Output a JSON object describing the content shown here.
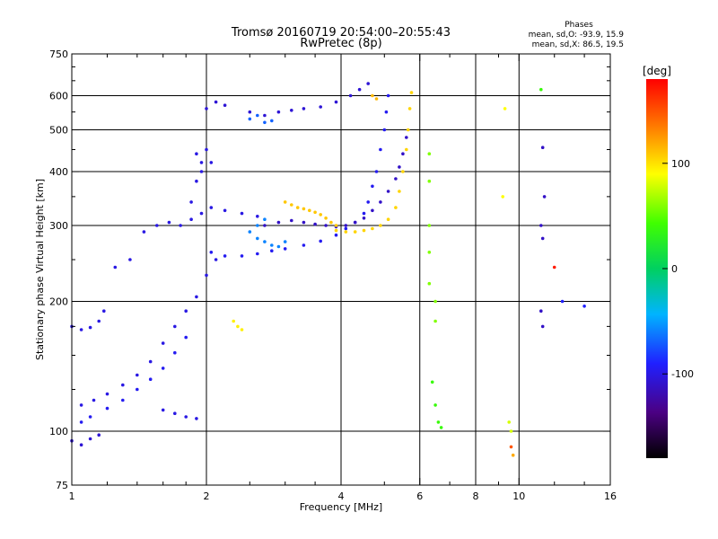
{
  "title": "Tromsø 20160719 20:54:00–20:55:43",
  "subtitle": "RwPretec (8p)",
  "phase_box": {
    "heading": "Phases",
    "line_o": "mean, sd,O: -93.9, 15.9",
    "line_x": "mean, sd,X:  86.5, 19.5"
  },
  "colorbar": {
    "label": "[deg]",
    "min": -180,
    "max": 180,
    "ticks": [
      {
        "value": 100,
        "label": "100"
      },
      {
        "value": 0,
        "label": "0"
      },
      {
        "value": -100,
        "label": "-100"
      }
    ]
  },
  "chart_data": {
    "type": "scatter",
    "xlabel": "Frequency [MHz]",
    "ylabel": "Stationary phase Virtual Height [km]",
    "xscale": "log",
    "yscale": "log",
    "xlim": [
      1,
      16
    ],
    "ylim": [
      75,
      750
    ],
    "xticks": [
      {
        "value": 1,
        "label": "1"
      },
      {
        "value": 2,
        "label": "2"
      },
      {
        "value": 4,
        "label": "4"
      },
      {
        "value": 6,
        "label": "6"
      },
      {
        "value": 8,
        "label": "8"
      },
      {
        "value": 10,
        "label": "10"
      },
      {
        "value": 16,
        "label": "16"
      }
    ],
    "yticks": [
      {
        "value": 75,
        "label": "75"
      },
      {
        "value": 100,
        "label": "100"
      },
      {
        "value": 200,
        "label": "200"
      },
      {
        "value": 300,
        "label": "300"
      },
      {
        "value": 400,
        "label": "400"
      },
      {
        "value": 500,
        "label": "500"
      },
      {
        "value": 600,
        "label": "600"
      },
      {
        "value": 750,
        "label": "750"
      }
    ],
    "v_grid": [
      2,
      4,
      6,
      8,
      10
    ],
    "h_grid": [
      100,
      200,
      300,
      400,
      500,
      600
    ],
    "minor_xticks": [
      1.2,
      1.4,
      1.6,
      1.8,
      2.5,
      3,
      3.5,
      5,
      7,
      9,
      12,
      14
    ],
    "minor_yticks": [
      125,
      150,
      175,
      250,
      350,
      450,
      550,
      650,
      700
    ],
    "grid": true,
    "traces": [
      {
        "name": "",
        "phase": -100,
        "points": [
          [
            1.0,
            175
          ],
          [
            1.05,
            172
          ],
          [
            1.1,
            174
          ],
          [
            1.15,
            180
          ],
          [
            1.18,
            190
          ],
          [
            1.25,
            240
          ],
          [
            1.35,
            250
          ],
          [
            1.45,
            290
          ],
          [
            1.55,
            300
          ],
          [
            1.65,
            305
          ],
          [
            1.75,
            300
          ],
          [
            1.85,
            310
          ],
          [
            1.95,
            320
          ],
          [
            2.05,
            330
          ],
          [
            2.2,
            325
          ],
          [
            2.4,
            320
          ],
          [
            2.6,
            315
          ]
        ]
      },
      {
        "name": "",
        "phase": -100,
        "points": [
          [
            1.05,
            115
          ],
          [
            1.12,
            118
          ],
          [
            1.2,
            122
          ],
          [
            1.3,
            128
          ],
          [
            1.4,
            135
          ],
          [
            1.5,
            145
          ],
          [
            1.6,
            160
          ],
          [
            1.7,
            175
          ],
          [
            1.8,
            190
          ],
          [
            1.9,
            205
          ],
          [
            2.0,
            230
          ],
          [
            2.1,
            250
          ]
        ]
      },
      {
        "name": "",
        "phase": -105,
        "points": [
          [
            1.0,
            95
          ],
          [
            1.05,
            93
          ],
          [
            1.1,
            96
          ],
          [
            1.15,
            98
          ]
        ]
      },
      {
        "name": "",
        "phase": -95,
        "points": [
          [
            1.05,
            105
          ],
          [
            1.1,
            108
          ],
          [
            1.2,
            113
          ],
          [
            1.3,
            118
          ],
          [
            1.4,
            125
          ],
          [
            1.5,
            132
          ],
          [
            1.6,
            140
          ],
          [
            1.7,
            152
          ],
          [
            1.8,
            165
          ]
        ]
      },
      {
        "name": "",
        "phase": -100,
        "points": [
          [
            1.6,
            112
          ],
          [
            1.7,
            110
          ],
          [
            1.8,
            108
          ],
          [
            1.9,
            107
          ]
        ]
      },
      {
        "name": "",
        "phase": -100,
        "points": [
          [
            1.85,
            340
          ],
          [
            1.9,
            380
          ],
          [
            1.95,
            420
          ],
          [
            2.0,
            450
          ],
          [
            2.05,
            420
          ],
          [
            1.9,
            440
          ],
          [
            1.95,
            400
          ]
        ]
      },
      {
        "name": "",
        "phase": -105,
        "points": [
          [
            2.0,
            560
          ],
          [
            2.1,
            580
          ],
          [
            2.2,
            570
          ],
          [
            2.5,
            550
          ],
          [
            2.7,
            540
          ],
          [
            2.9,
            550
          ],
          [
            3.1,
            555
          ],
          [
            3.3,
            560
          ],
          [
            3.6,
            565
          ],
          [
            3.9,
            580
          ],
          [
            4.2,
            600
          ],
          [
            4.4,
            620
          ],
          [
            4.6,
            640
          ]
        ]
      },
      {
        "name": "",
        "phase": -70,
        "points": [
          [
            2.5,
            530
          ],
          [
            2.6,
            540
          ],
          [
            2.7,
            520
          ],
          [
            2.8,
            525
          ]
        ]
      },
      {
        "name": "",
        "phase": -95,
        "points": [
          [
            2.05,
            260
          ],
          [
            2.2,
            255
          ],
          [
            2.4,
            255
          ],
          [
            2.6,
            258
          ],
          [
            2.8,
            262
          ],
          [
            3.0,
            265
          ],
          [
            3.3,
            270
          ],
          [
            3.6,
            276
          ],
          [
            3.9,
            285
          ],
          [
            4.1,
            295
          ],
          [
            4.3,
            305
          ],
          [
            4.5,
            320
          ],
          [
            4.6,
            340
          ],
          [
            4.7,
            370
          ],
          [
            4.8,
            400
          ],
          [
            4.9,
            450
          ],
          [
            5.0,
            500
          ],
          [
            5.05,
            550
          ],
          [
            5.1,
            600
          ]
        ]
      },
      {
        "name": "",
        "phase": -110,
        "points": [
          [
            2.7,
            300
          ],
          [
            2.9,
            305
          ],
          [
            3.1,
            308
          ],
          [
            3.3,
            305
          ],
          [
            3.5,
            302
          ],
          [
            3.7,
            300
          ],
          [
            3.9,
            298
          ],
          [
            4.1,
            300
          ],
          [
            4.3,
            305
          ],
          [
            4.5,
            312
          ],
          [
            4.7,
            325
          ],
          [
            4.9,
            340
          ],
          [
            5.1,
            360
          ],
          [
            5.3,
            385
          ],
          [
            5.4,
            410
          ],
          [
            5.5,
            440
          ],
          [
            5.6,
            480
          ]
        ]
      },
      {
        "name": "",
        "phase": -60,
        "points": [
          [
            2.5,
            290
          ],
          [
            2.6,
            280
          ],
          [
            2.7,
            275
          ],
          [
            2.8,
            270
          ],
          [
            2.9,
            268
          ],
          [
            3.0,
            275
          ],
          [
            2.6,
            300
          ],
          [
            2.7,
            310
          ]
        ]
      },
      {
        "name": "",
        "phase": 110,
        "points": [
          [
            3.0,
            340
          ],
          [
            3.1,
            335
          ],
          [
            3.2,
            330
          ],
          [
            3.3,
            328
          ],
          [
            3.4,
            325
          ],
          [
            3.5,
            322
          ],
          [
            3.6,
            318
          ],
          [
            3.7,
            312
          ],
          [
            3.8,
            305
          ],
          [
            3.9,
            300
          ]
        ]
      },
      {
        "name": "",
        "phase": 105,
        "points": [
          [
            3.9,
            292
          ],
          [
            4.1,
            290
          ],
          [
            4.3,
            290
          ],
          [
            4.5,
            292
          ],
          [
            4.7,
            295
          ],
          [
            4.9,
            300
          ],
          [
            5.1,
            310
          ],
          [
            5.3,
            330
          ],
          [
            5.4,
            360
          ],
          [
            5.5,
            400
          ],
          [
            5.6,
            450
          ],
          [
            5.65,
            500
          ],
          [
            5.7,
            560
          ],
          [
            5.75,
            610
          ]
        ]
      },
      {
        "name": "",
        "phase": 115,
        "points": [
          [
            4.7,
            600
          ],
          [
            4.8,
            590
          ]
        ]
      },
      {
        "name": "",
        "phase": 95,
        "points": [
          [
            2.3,
            180
          ],
          [
            2.35,
            175
          ],
          [
            2.4,
            172
          ]
        ]
      },
      {
        "name": "",
        "phase": 60,
        "points": [
          [
            6.3,
            440
          ],
          [
            6.3,
            380
          ],
          [
            6.3,
            300
          ],
          [
            6.3,
            260
          ],
          [
            6.3,
            220
          ],
          [
            6.5,
            200
          ],
          [
            6.5,
            180
          ]
        ]
      },
      {
        "name": "",
        "phase": 40,
        "points": [
          [
            6.4,
            130
          ],
          [
            6.5,
            115
          ],
          [
            6.6,
            105
          ],
          [
            6.7,
            102
          ]
        ]
      },
      {
        "name": "",
        "phase": 80,
        "points": [
          [
            9.5,
            105
          ],
          [
            9.6,
            100
          ]
        ]
      },
      {
        "name": "",
        "phase": 150,
        "points": [
          [
            9.6,
            92
          ]
        ]
      },
      {
        "name": "",
        "phase": 120,
        "points": [
          [
            9.7,
            88
          ]
        ]
      },
      {
        "name": "",
        "phase": 40,
        "points": [
          [
            11.2,
            620
          ]
        ]
      },
      {
        "name": "",
        "phase": -110,
        "points": [
          [
            11.3,
            455
          ],
          [
            11.4,
            350
          ],
          [
            11.2,
            300
          ],
          [
            11.3,
            280
          ],
          [
            11.2,
            190
          ],
          [
            11.3,
            175
          ]
        ]
      },
      {
        "name": "",
        "phase": 170,
        "points": [
          [
            12.0,
            240
          ]
        ]
      },
      {
        "name": "",
        "phase": -90,
        "points": [
          [
            14.0,
            195
          ],
          [
            12.5,
            200
          ]
        ]
      },
      {
        "name": "",
        "phase": 90,
        "points": [
          [
            9.3,
            560
          ],
          [
            9.2,
            350
          ]
        ]
      }
    ]
  }
}
